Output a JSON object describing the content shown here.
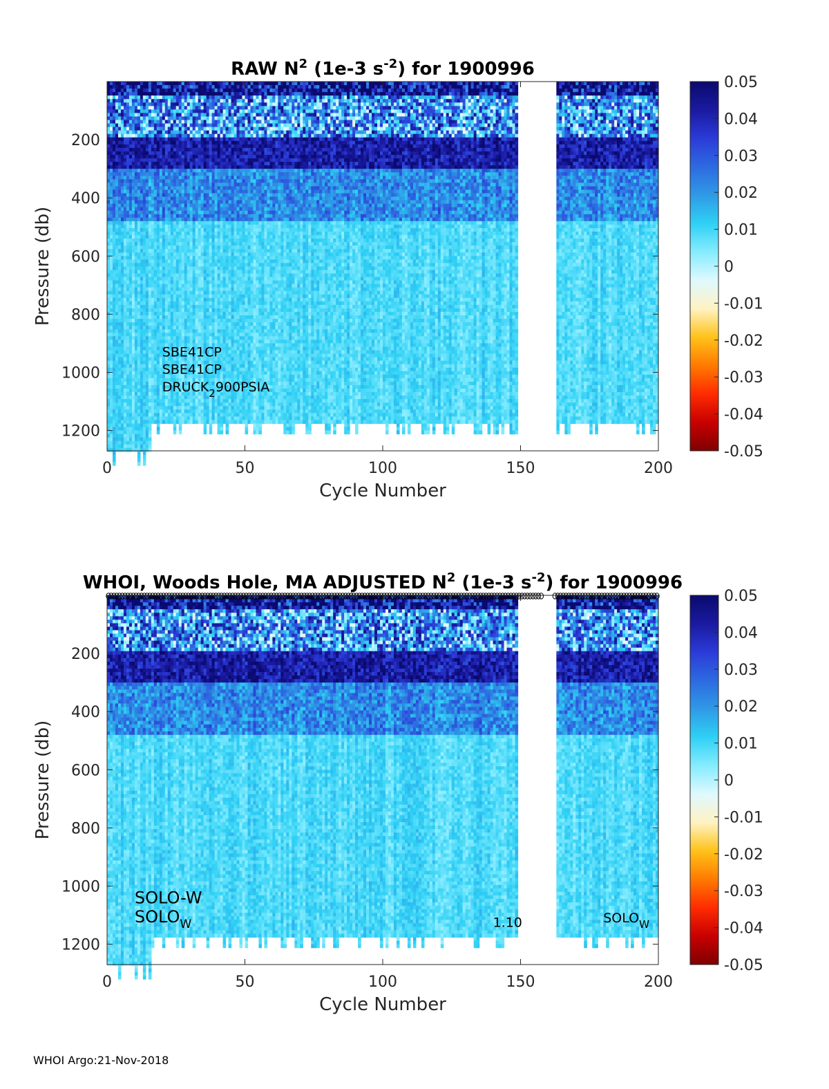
{
  "footer": "WHOI Argo:21-Nov-2018",
  "colors": {
    "colormap": [
      "#7f0000",
      "#c80000",
      "#ff2b00",
      "#ff7a00",
      "#ffc21a",
      "#fff2c2",
      "#dff9ff",
      "#86ecff",
      "#2fd0f5",
      "#2f9ae6",
      "#2d6ae0",
      "#2b3bd8",
      "#1a1aa0",
      "#0a0a6e"
    ],
    "axis": "#262626"
  },
  "chart_data": [
    {
      "type": "heatmap",
      "panel": "top",
      "title_parts": {
        "pre": "RAW N",
        "sup1": "2",
        "mid": " (1e-3 s",
        "sup2": "-2",
        "post": ") for 1900996"
      },
      "xlabel": "Cycle Number",
      "ylabel": "Pressure (db)",
      "xlim": [
        0,
        200
      ],
      "ylim": [
        1270,
        0
      ],
      "xticks": [
        0,
        50,
        100,
        150,
        200
      ],
      "yticks": [
        200,
        400,
        600,
        800,
        1000,
        1200
      ],
      "colorbar": {
        "clim": [
          -0.05,
          0.05
        ],
        "ticks": [
          "0.05",
          "0.04",
          "0.03",
          "0.02",
          "0.01",
          "0",
          "-0.01",
          "-0.02",
          "-0.03",
          "-0.04",
          "-0.05"
        ]
      },
      "annotations": [
        {
          "text": "SBE41CP",
          "x": 20,
          "y": 945
        },
        {
          "text": "SBE41CP",
          "x": 20,
          "y": 1005
        },
        {
          "text": "DRUCK",
          "sub": "2",
          "rest": "900PSIA",
          "x": 20,
          "y": 1065
        }
      ],
      "data_gap_cycles": [
        149,
        163
      ],
      "profile_depth_max": 1165,
      "value_bands": [
        {
          "p_range": [
            0,
            40
          ],
          "n2": 0.045
        },
        {
          "p_range": [
            40,
            190
          ],
          "n2": 0.02
        },
        {
          "p_range": [
            190,
            300
          ],
          "n2": 0.042
        },
        {
          "p_range": [
            300,
            480
          ],
          "n2": 0.022
        },
        {
          "p_range": [
            480,
            1165
          ],
          "n2": 0.009
        }
      ]
    },
    {
      "type": "heatmap",
      "panel": "bottom",
      "title_parts": {
        "pre": "WHOI, Woods Hole, MA  ADJUSTED N",
        "sup1": "2",
        "mid": " (1e-3 s",
        "sup2": "-2",
        "post": ") for 1900996"
      },
      "xlabel": "Cycle Number",
      "ylabel": "Pressure (db)",
      "xlim": [
        0,
        200
      ],
      "ylim": [
        1270,
        0
      ],
      "xticks": [
        0,
        50,
        100,
        150,
        200
      ],
      "yticks": [
        200,
        400,
        600,
        800,
        1000,
        1200
      ],
      "colorbar": {
        "clim": [
          -0.05,
          0.05
        ],
        "ticks": [
          "0.05",
          "0.04",
          "0.03",
          "0.02",
          "0.01",
          "0",
          "-0.01",
          "-0.02",
          "-0.03",
          "-0.04",
          "-0.05"
        ]
      },
      "annotations": [
        {
          "text": "SOLO-W",
          "x": 10,
          "y": 1060,
          "large": true
        },
        {
          "text": "SOLO",
          "sub": "W",
          "x": 10,
          "y": 1125,
          "large": true
        },
        {
          "text": "1.10",
          "x": 140,
          "y": 1140
        },
        {
          "text": "SOLO",
          "sub": "W",
          "x": 180,
          "y": 1125
        }
      ],
      "data_gap_cycles": [
        149,
        163
      ],
      "profile_depth_max": 1165,
      "value_bands": [
        {
          "p_range": [
            0,
            40
          ],
          "n2": 0.045
        },
        {
          "p_range": [
            40,
            190
          ],
          "n2": 0.02
        },
        {
          "p_range": [
            190,
            300
          ],
          "n2": 0.042
        },
        {
          "p_range": [
            300,
            480
          ],
          "n2": 0.022
        },
        {
          "p_range": [
            480,
            1165
          ],
          "n2": 0.009
        }
      ]
    }
  ]
}
